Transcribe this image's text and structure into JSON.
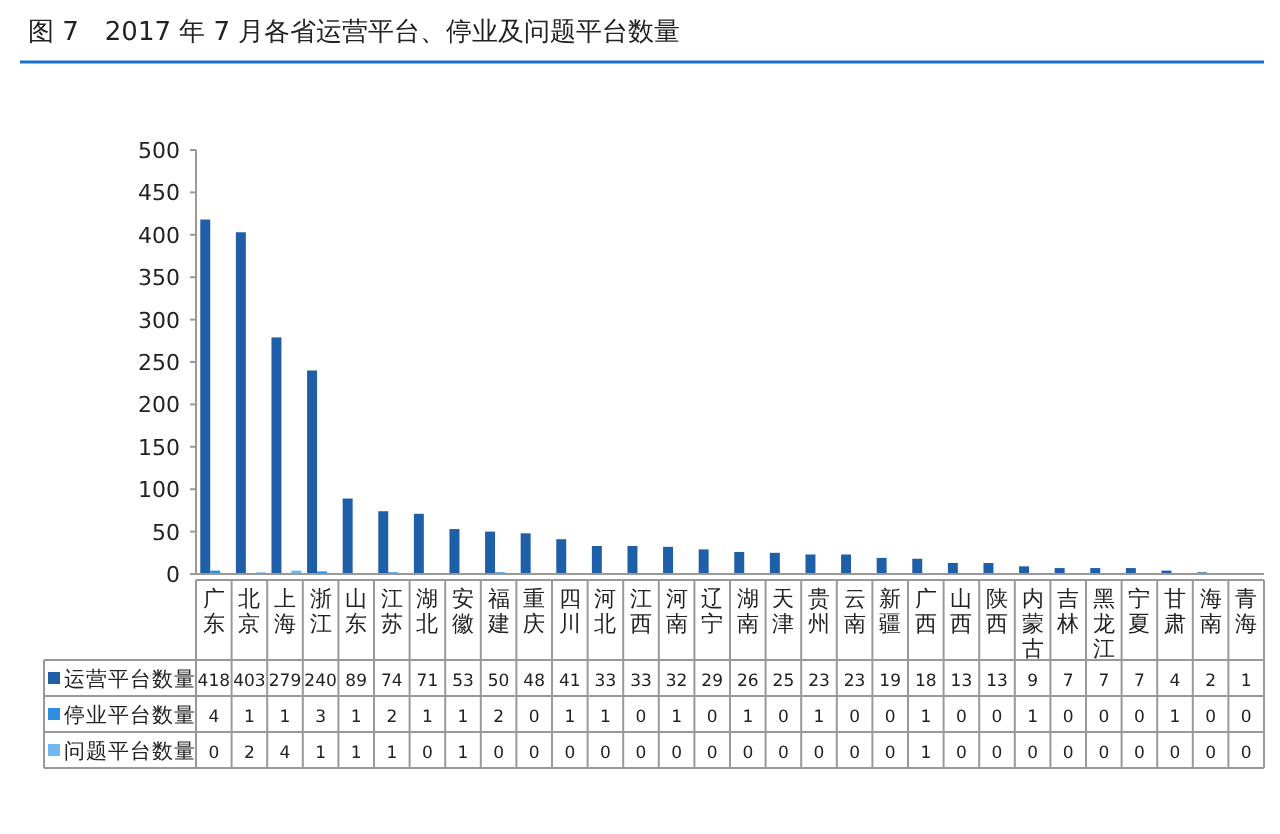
{
  "chart_data": {
    "type": "bar",
    "title": "图 7　2017 年 7 月各省运营平台、停业及问题平台数量",
    "categories": [
      "广东",
      "北京",
      "上海",
      "浙江",
      "山东",
      "江苏",
      "湖北",
      "安徽",
      "福建",
      "重庆",
      "四川",
      "河北",
      "江西",
      "河南",
      "辽宁",
      "湖南",
      "天津",
      "贵州",
      "云南",
      "新疆",
      "广西",
      "山西",
      "陕西",
      "内蒙古",
      "吉林",
      "黑龙江",
      "宁夏",
      "甘肃",
      "海南",
      "青海"
    ],
    "series": [
      {
        "name": "运营平台数量",
        "color": "#1f5fa8",
        "values": [
          418,
          403,
          279,
          240,
          89,
          74,
          71,
          53,
          50,
          48,
          41,
          33,
          33,
          32,
          29,
          26,
          25,
          23,
          23,
          19,
          18,
          13,
          13,
          9,
          7,
          7,
          7,
          4,
          2,
          1
        ]
      },
      {
        "name": "停业平台数量",
        "color": "#2e8fe0",
        "values": [
          4,
          1,
          1,
          3,
          1,
          2,
          1,
          1,
          2,
          0,
          1,
          1,
          0,
          1,
          0,
          1,
          0,
          1,
          0,
          0,
          1,
          0,
          0,
          1,
          0,
          0,
          0,
          1,
          0,
          0
        ]
      },
      {
        "name": "问题平台数量",
        "color": "#72b8f0",
        "values": [
          0,
          2,
          4,
          1,
          1,
          1,
          0,
          1,
          0,
          0,
          0,
          0,
          0,
          0,
          0,
          0,
          0,
          0,
          0,
          0,
          1,
          0,
          0,
          0,
          0,
          0,
          0,
          0,
          0,
          0
        ]
      }
    ],
    "ylim": [
      0,
      500
    ],
    "yticks": [
      0,
      50,
      100,
      150,
      200,
      250,
      300,
      350,
      400,
      450,
      500
    ],
    "data_labels": true,
    "legend": "bottom"
  }
}
